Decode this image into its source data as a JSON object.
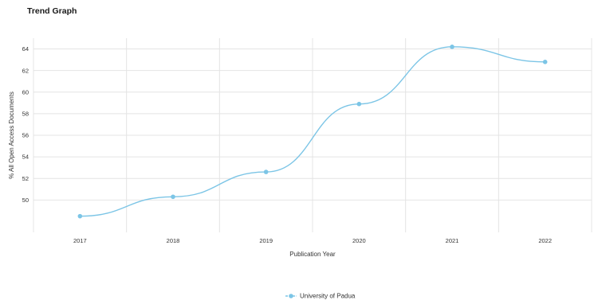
{
  "page": {
    "title": "Trend Graph"
  },
  "chart_data": {
    "type": "line",
    "smooth": true,
    "x": [
      "2017",
      "2018",
      "2019",
      "2020",
      "2021",
      "2022"
    ],
    "series": [
      {
        "name": "University of Padua",
        "values": [
          48.5,
          50.3,
          52.6,
          58.9,
          64.2,
          62.8
        ],
        "color": "#7cc5e6"
      }
    ],
    "xlabel": "Publication Year",
    "ylabel": "% All Open Access Documents",
    "ylim": [
      47,
      65
    ],
    "yticks": [
      50,
      52,
      54,
      56,
      58,
      60,
      62,
      64
    ],
    "grid": true,
    "legend": "bottom-center"
  }
}
